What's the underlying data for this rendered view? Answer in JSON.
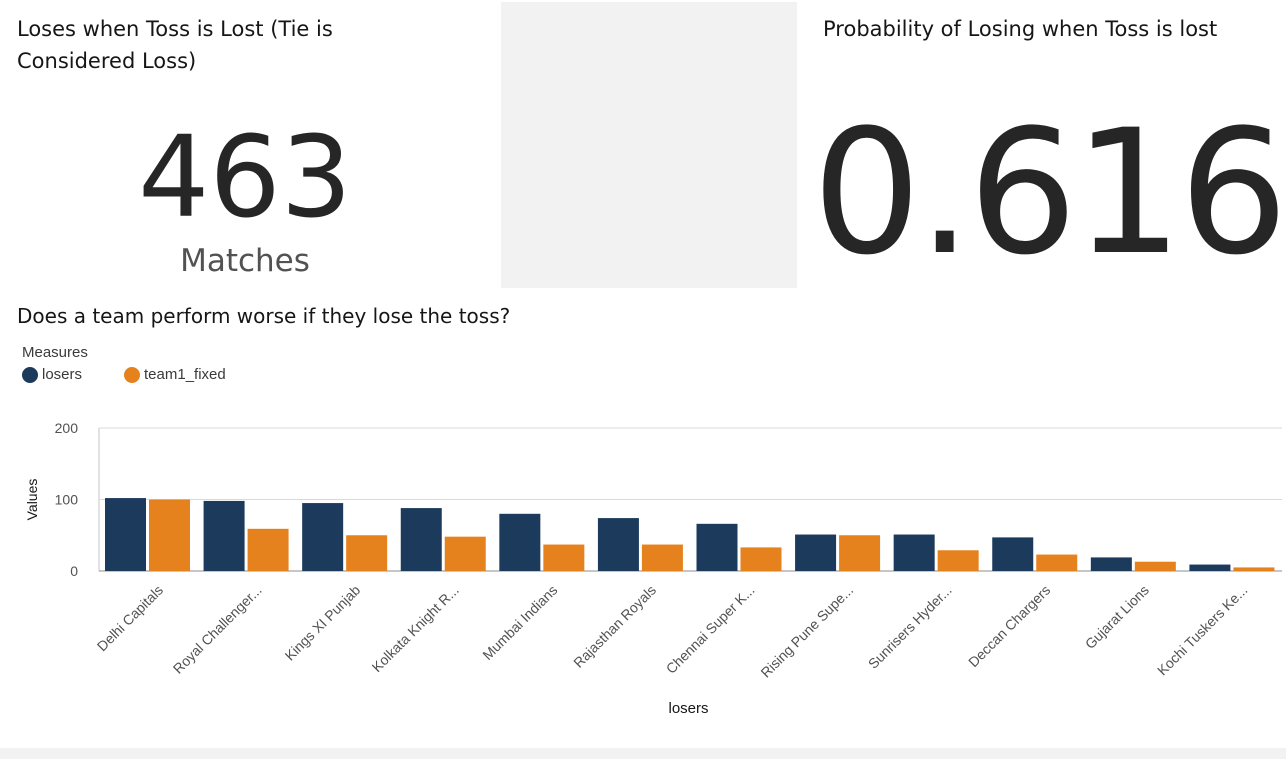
{
  "card1": {
    "title": "Loses when Toss is Lost (Tie is Considered Loss)",
    "value": "463",
    "unit": "Matches"
  },
  "card2": {
    "title": "Probability of Losing when Toss is lost",
    "value": "0.616"
  },
  "chart_data": {
    "type": "bar",
    "title": "Does a team perform worse if they lose the toss?",
    "legend_title": "Measures",
    "legend_position": "top-left",
    "xlabel": "losers",
    "ylabel": "Values",
    "ylim": [
      0,
      200
    ],
    "yticks": [
      0,
      100,
      200
    ],
    "grid": true,
    "categories": [
      "Delhi Capitals",
      "Royal Challenger...",
      "Kings XI Punjab",
      "Kolkata Knight R...",
      "Mumbai Indians",
      "Rajasthan Royals",
      "Chennai Super K...",
      "Rising Pune Supe...",
      "Sunrisers Hyder...",
      "Deccan Chargers",
      "Gujarat Lions",
      "Kochi Tuskers Ke..."
    ],
    "series": [
      {
        "name": "losers",
        "color": "#1b3a5c",
        "values": [
          102,
          98,
          95,
          88,
          80,
          74,
          66,
          51,
          51,
          47,
          19,
          9
        ]
      },
      {
        "name": "team1_fixed",
        "color": "#e6821e",
        "values": [
          100,
          59,
          50,
          48,
          37,
          37,
          33,
          50,
          29,
          23,
          13,
          5
        ]
      }
    ]
  }
}
